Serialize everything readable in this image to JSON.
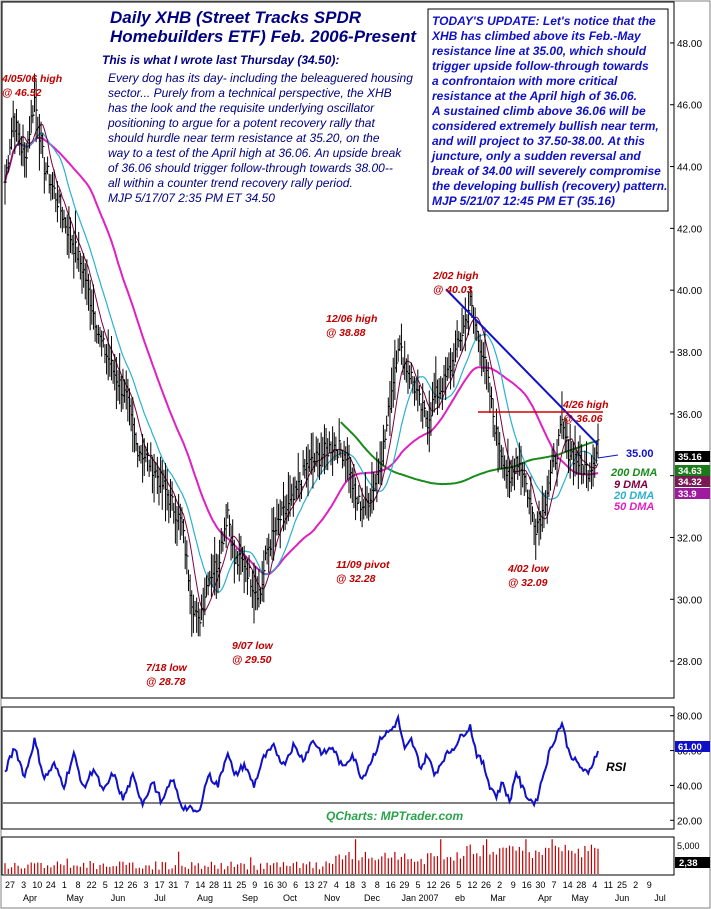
{
  "title": {
    "line1": "Daily XHB (Street Tracks SPDR",
    "line2": "Homebuilders ETF) Feb. 2006-Present"
  },
  "intro": "This is what I wrote last Thursday (34.50):",
  "comment_lines": [
    "Every dog has its day- including the beleaguered housing",
    "sector... Purely from a technical perspective, the XHB",
    "has the look and the requisite underlying oscillator",
    "positioning to argue for a potent recovery rally that",
    "should hurdle near term resistance at 35.20, on the",
    "way to a test of the April high at 36.06. An upside break",
    "of 36.06 should trigger follow-through towards 38.00--",
    "all within a counter trend recovery rally period.",
    "MJP  5/17/07  2:35 PM ET  34.50"
  ],
  "update_lines": [
    "TODAY'S UPDATE: Let's notice that the",
    "XHB has climbed above its Feb.-May",
    "resistance line at 35.00, which should",
    "trigger upside follow-through towards",
    "a confrontaion with more critical",
    "resistance at the April high of 36.06.",
    "A sustained climb above 36.06 will be",
    "considered extremely bullish near term,",
    "and will project to 37.50-38.00. At this",
    "juncture, only a sudden reversal and",
    "break of 34.00 will severely compromise",
    "the developing bullish (recovery) pattern.",
    "MJP  5/21/07  12:45 PM ET  (35.16)"
  ],
  "annotations": [
    {
      "id": "apr05-high",
      "lines": [
        "4/05/06 high",
        "@ 46.52"
      ]
    },
    {
      "id": "jul18-low",
      "lines": [
        "7/18 low",
        "@ 28.78"
      ]
    },
    {
      "id": "sep07-low",
      "lines": [
        "9/07 low",
        "@ 29.50"
      ]
    },
    {
      "id": "nov09-pivot",
      "lines": [
        "11/09 pivot",
        "@ 32.28"
      ]
    },
    {
      "id": "dec06-high",
      "lines": [
        "12/06 high",
        "@ 38.88"
      ]
    },
    {
      "id": "feb02-high",
      "lines": [
        "2/02 high",
        "@ 40.03"
      ]
    },
    {
      "id": "apr26-high",
      "lines": [
        "4/26 high",
        "@ 36.06"
      ]
    },
    {
      "id": "apr02-low",
      "lines": [
        "4/02 low",
        "@ 32.09"
      ]
    }
  ],
  "resistance_label": "35.00",
  "price_boxes": [
    {
      "text": "35.16",
      "bg": "#000000"
    },
    {
      "text": "34.63",
      "bg": "#1a7a1a"
    },
    {
      "text": "34.32",
      "bg": "#7a1a55"
    },
    {
      "text": "33.9",
      "bg": "#a01aa0"
    }
  ],
  "legend": [
    {
      "label": "200 DMA",
      "color": "#1a8a1a"
    },
    {
      "label": "9 DMA",
      "color": "#800040"
    },
    {
      "label": "20 DMA",
      "color": "#2ab0d0"
    },
    {
      "label": "50 DMA",
      "color": "#e020c0"
    }
  ],
  "rsi_label": "RSI",
  "rsi_value": "61.00",
  "volume_labels": {
    "top": "5,000",
    "value": "2,38"
  },
  "credit": "QCharts: MPTrader.com",
  "x_axis": {
    "dates": [
      "27",
      "3",
      "10",
      "24",
      "1",
      "8",
      "22",
      "5",
      "12",
      "26",
      "3",
      "17",
      "31",
      "7",
      "14",
      "28",
      "11",
      "25",
      "9",
      "16",
      "30",
      "6",
      "13",
      "27",
      "4",
      "18",
      "3",
      "8",
      "16",
      "29",
      "5",
      "12",
      "26",
      "5",
      "12",
      "26",
      "2",
      "9",
      "16",
      "30",
      "7",
      "14",
      "28",
      "4",
      "11",
      "25",
      "2",
      "9"
    ],
    "months": [
      "Apr",
      "May",
      "Jun",
      "Jul",
      "Aug",
      "Sep",
      "Oct",
      "Nov",
      "Dec",
      "Jan 2007",
      "eb",
      "Mar",
      "Apr",
      "May",
      "Jun",
      "Jul"
    ]
  },
  "colors": {
    "price": "#000000",
    "ma200": "#1a8a1a",
    "ma9": "#800040",
    "ma20": "#2ab0d0",
    "ma50": "#e020c0",
    "trendline": "#1010c8",
    "resistance": "#d00000",
    "rsi": "#1010c8",
    "volume": "#c00000"
  },
  "chart_data": {
    "type": "line",
    "symbol": "XHB",
    "y_ticks": [
      28.0,
      30.0,
      32.0,
      34.0,
      36.0,
      38.0,
      40.0,
      42.0,
      44.0,
      46.0,
      48.0
    ],
    "ylim": [
      27.0,
      49.0
    ],
    "price_pivots": [
      {
        "bar": 0,
        "close": 43.5
      },
      {
        "bar": 5,
        "close": 45.6
      },
      {
        "bar": 12,
        "close": 44.2
      },
      {
        "bar": 18,
        "close": 46.2
      },
      {
        "bar": 24,
        "close": 44.0
      },
      {
        "bar": 30,
        "close": 43.2
      },
      {
        "bar": 38,
        "close": 42.0
      },
      {
        "bar": 48,
        "close": 40.6
      },
      {
        "bar": 58,
        "close": 38.4
      },
      {
        "bar": 66,
        "close": 37.4
      },
      {
        "bar": 74,
        "close": 36.5
      },
      {
        "bar": 80,
        "close": 35.0
      },
      {
        "bar": 90,
        "close": 34.3
      },
      {
        "bar": 100,
        "close": 33.3
      },
      {
        "bar": 108,
        "close": 32.4
      },
      {
        "bar": 114,
        "close": 30.0
      },
      {
        "bar": 118,
        "close": 29.2
      },
      {
        "bar": 124,
        "close": 30.7
      },
      {
        "bar": 130,
        "close": 31.2
      },
      {
        "bar": 136,
        "close": 32.9
      },
      {
        "bar": 140,
        "close": 31.2
      },
      {
        "bar": 146,
        "close": 31.2
      },
      {
        "bar": 152,
        "close": 30.4
      },
      {
        "bar": 156,
        "close": 30.2
      },
      {
        "bar": 160,
        "close": 31.6
      },
      {
        "bar": 168,
        "close": 32.6
      },
      {
        "bar": 176,
        "close": 33.2
      },
      {
        "bar": 184,
        "close": 34.3
      },
      {
        "bar": 192,
        "close": 34.6
      },
      {
        "bar": 200,
        "close": 35.0
      },
      {
        "bar": 208,
        "close": 34.7
      },
      {
        "bar": 214,
        "close": 33.2
      },
      {
        "bar": 220,
        "close": 33.0
      },
      {
        "bar": 226,
        "close": 33.8
      },
      {
        "bar": 232,
        "close": 35.2
      },
      {
        "bar": 236,
        "close": 36.8
      },
      {
        "bar": 240,
        "close": 38.3
      },
      {
        "bar": 244,
        "close": 37.6
      },
      {
        "bar": 248,
        "close": 37.2
      },
      {
        "bar": 254,
        "close": 36.2
      },
      {
        "bar": 258,
        "close": 35.8
      },
      {
        "bar": 262,
        "close": 36.5
      },
      {
        "bar": 268,
        "close": 37.0
      },
      {
        "bar": 274,
        "close": 37.8
      },
      {
        "bar": 280,
        "close": 38.8
      },
      {
        "bar": 284,
        "close": 39.6
      },
      {
        "bar": 288,
        "close": 38.6
      },
      {
        "bar": 292,
        "close": 37.9
      },
      {
        "bar": 296,
        "close": 36.6
      },
      {
        "bar": 300,
        "close": 35.3
      },
      {
        "bar": 304,
        "close": 34.6
      },
      {
        "bar": 308,
        "close": 33.6
      },
      {
        "bar": 312,
        "close": 34.6
      },
      {
        "bar": 316,
        "close": 34.2
      },
      {
        "bar": 320,
        "close": 33.2
      },
      {
        "bar": 324,
        "close": 32.4
      },
      {
        "bar": 328,
        "close": 32.8
      },
      {
        "bar": 332,
        "close": 33.8
      },
      {
        "bar": 336,
        "close": 34.6
      },
      {
        "bar": 340,
        "close": 35.6
      },
      {
        "bar": 344,
        "close": 34.8
      },
      {
        "bar": 348,
        "close": 34.6
      },
      {
        "bar": 352,
        "close": 34.3
      },
      {
        "bar": 356,
        "close": 34.2
      },
      {
        "bar": 360,
        "close": 34.6
      },
      {
        "bar": 362,
        "close": 35.16
      }
    ],
    "marked_points": [
      {
        "date": "4/05/06",
        "label": "high",
        "value": 46.52
      },
      {
        "date": "7/18/06",
        "label": "low",
        "value": 28.78
      },
      {
        "date": "9/07/06",
        "label": "low",
        "value": 29.5
      },
      {
        "date": "11/09/06",
        "label": "pivot",
        "value": 32.28
      },
      {
        "date": "12/06/06",
        "label": "high",
        "value": 38.88
      },
      {
        "date": "2/02/07",
        "label": "high",
        "value": 40.03
      },
      {
        "date": "4/02/07",
        "label": "low",
        "value": 32.09
      },
      {
        "date": "4/26/07",
        "label": "high",
        "value": 36.06
      }
    ],
    "resistance_line": {
      "value": 36.06
    },
    "trendline": {
      "from": {
        "date": "2/02/07",
        "value": 40.03
      },
      "to_value": 35.0
    },
    "moving_averages": [
      {
        "name": "9 DMA",
        "last": 34.32
      },
      {
        "name": "20 DMA",
        "last": 33.9
      },
      {
        "name": "50 DMA",
        "last": 33.9
      },
      {
        "name": "200 DMA",
        "last": 34.63
      }
    ],
    "rsi": {
      "y_ticks": [
        20.0,
        40.0,
        60.0,
        80.0
      ],
      "ylim": [
        15,
        85
      ],
      "reference_lines": [
        30,
        70
      ],
      "last": 61.0,
      "pivots": [
        {
          "bar": 0,
          "v": 48
        },
        {
          "bar": 6,
          "v": 62
        },
        {
          "bar": 12,
          "v": 45
        },
        {
          "bar": 18,
          "v": 66
        },
        {
          "bar": 24,
          "v": 44
        },
        {
          "bar": 30,
          "v": 52
        },
        {
          "bar": 36,
          "v": 40
        },
        {
          "bar": 42,
          "v": 58
        },
        {
          "bar": 48,
          "v": 38
        },
        {
          "bar": 54,
          "v": 50
        },
        {
          "bar": 60,
          "v": 36
        },
        {
          "bar": 66,
          "v": 47
        },
        {
          "bar": 72,
          "v": 32
        },
        {
          "bar": 78,
          "v": 45
        },
        {
          "bar": 84,
          "v": 30
        },
        {
          "bar": 90,
          "v": 42
        },
        {
          "bar": 96,
          "v": 30
        },
        {
          "bar": 102,
          "v": 44
        },
        {
          "bar": 108,
          "v": 28
        },
        {
          "bar": 114,
          "v": 26
        },
        {
          "bar": 118,
          "v": 24
        },
        {
          "bar": 124,
          "v": 46
        },
        {
          "bar": 130,
          "v": 40
        },
        {
          "bar": 136,
          "v": 60
        },
        {
          "bar": 140,
          "v": 45
        },
        {
          "bar": 146,
          "v": 52
        },
        {
          "bar": 152,
          "v": 40
        },
        {
          "bar": 158,
          "v": 56
        },
        {
          "bar": 164,
          "v": 62
        },
        {
          "bar": 170,
          "v": 52
        },
        {
          "bar": 176,
          "v": 63
        },
        {
          "bar": 182,
          "v": 55
        },
        {
          "bar": 188,
          "v": 66
        },
        {
          "bar": 194,
          "v": 58
        },
        {
          "bar": 200,
          "v": 62
        },
        {
          "bar": 206,
          "v": 50
        },
        {
          "bar": 212,
          "v": 58
        },
        {
          "bar": 218,
          "v": 44
        },
        {
          "bar": 224,
          "v": 55
        },
        {
          "bar": 230,
          "v": 68
        },
        {
          "bar": 236,
          "v": 72
        },
        {
          "bar": 240,
          "v": 78
        },
        {
          "bar": 244,
          "v": 60
        },
        {
          "bar": 248,
          "v": 66
        },
        {
          "bar": 254,
          "v": 50
        },
        {
          "bar": 258,
          "v": 58
        },
        {
          "bar": 262,
          "v": 46
        },
        {
          "bar": 268,
          "v": 56
        },
        {
          "bar": 274,
          "v": 62
        },
        {
          "bar": 280,
          "v": 70
        },
        {
          "bar": 284,
          "v": 74
        },
        {
          "bar": 288,
          "v": 58
        },
        {
          "bar": 292,
          "v": 52
        },
        {
          "bar": 296,
          "v": 40
        },
        {
          "bar": 300,
          "v": 34
        },
        {
          "bar": 304,
          "v": 42
        },
        {
          "bar": 308,
          "v": 30
        },
        {
          "bar": 312,
          "v": 48
        },
        {
          "bar": 316,
          "v": 38
        },
        {
          "bar": 320,
          "v": 32
        },
        {
          "bar": 324,
          "v": 30
        },
        {
          "bar": 328,
          "v": 44
        },
        {
          "bar": 332,
          "v": 58
        },
        {
          "bar": 336,
          "v": 68
        },
        {
          "bar": 340,
          "v": 76
        },
        {
          "bar": 344,
          "v": 60
        },
        {
          "bar": 348,
          "v": 54
        },
        {
          "bar": 352,
          "v": 50
        },
        {
          "bar": 356,
          "v": 46
        },
        {
          "bar": 362,
          "v": 61
        }
      ]
    },
    "volume": {
      "ylim": [
        0,
        6000
      ],
      "y_ticks": [
        5000
      ]
    }
  }
}
